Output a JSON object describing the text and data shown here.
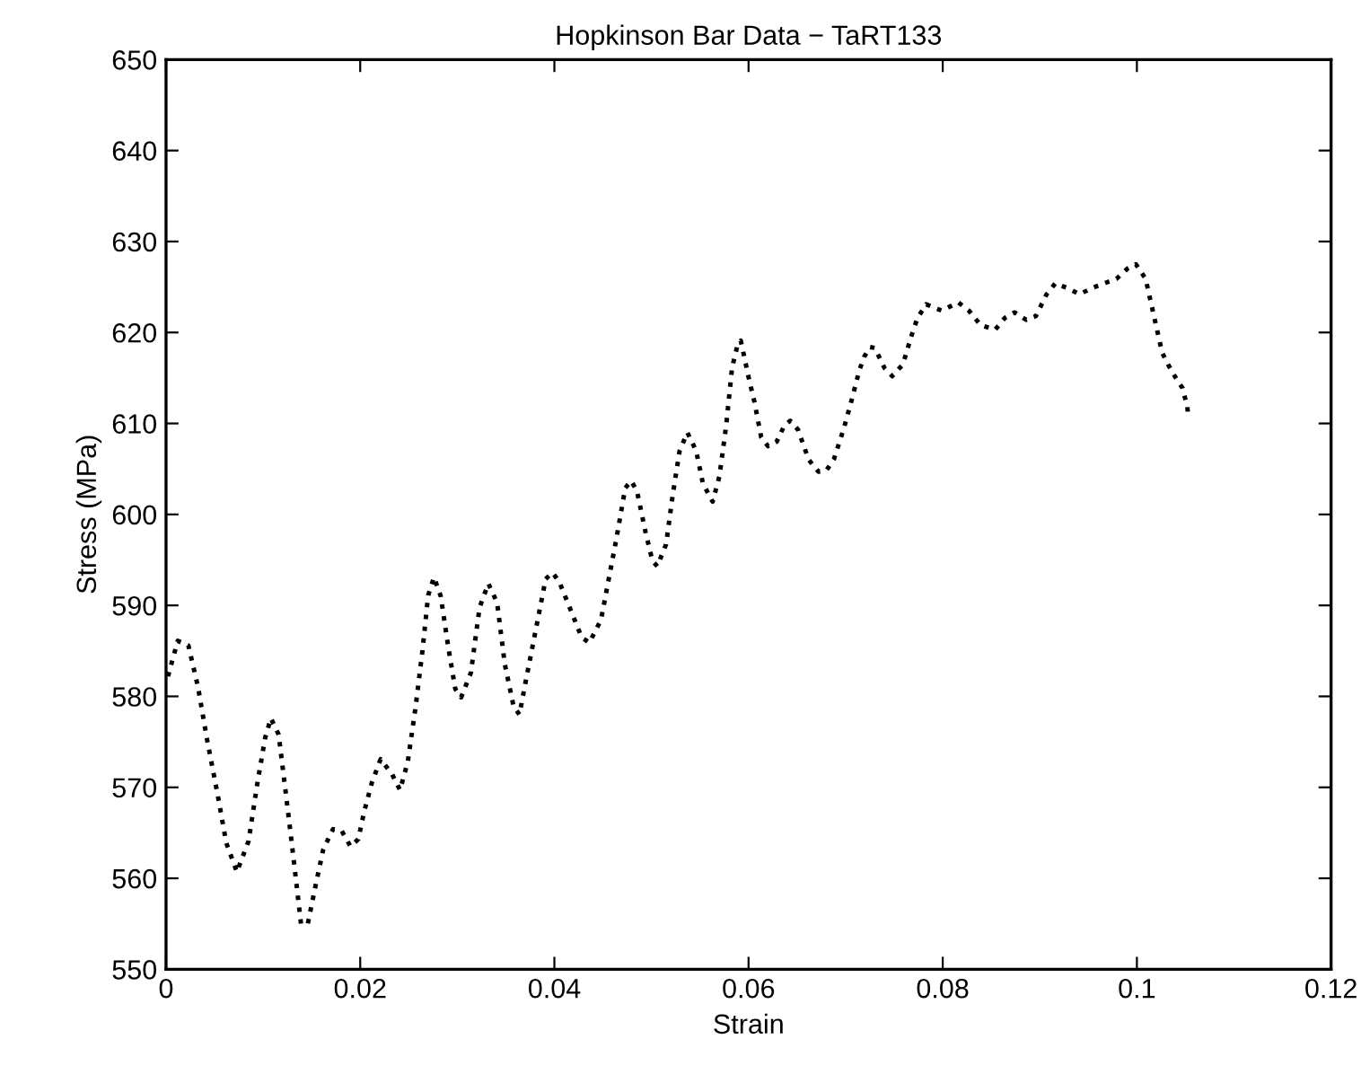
{
  "chart_data": {
    "type": "line",
    "title": "Hopkinson Bar Data − TaRT133",
    "xlabel": "Strain",
    "ylabel": "Stress (MPa)",
    "xlim": [
      0,
      0.12
    ],
    "xticks": [
      0,
      0.02,
      0.04,
      0.06,
      0.08,
      0.1,
      0.12
    ],
    "ylim": [
      550,
      650
    ],
    "yticks": [
      550,
      560,
      570,
      580,
      590,
      600,
      610,
      620,
      630,
      640,
      650
    ],
    "grid": false,
    "legend": false,
    "line_style": "dotted",
    "marker": "none",
    "series": [
      {
        "color": "#000000",
        "x": [
          0.0002,
          0.0012,
          0.0023,
          0.0033,
          0.0042,
          0.0053,
          0.0062,
          0.0073,
          0.0085,
          0.0094,
          0.0102,
          0.0108,
          0.0116,
          0.0124,
          0.0131,
          0.0139,
          0.0146,
          0.0155,
          0.0162,
          0.0172,
          0.0181,
          0.019,
          0.0198,
          0.0204,
          0.0212,
          0.0221,
          0.0233,
          0.0241,
          0.0249,
          0.0257,
          0.0264,
          0.027,
          0.0276,
          0.0283,
          0.0291,
          0.0298,
          0.0304,
          0.0314,
          0.0323,
          0.0332,
          0.0341,
          0.0349,
          0.0358,
          0.0364,
          0.0372,
          0.0383,
          0.0391,
          0.0398,
          0.0405,
          0.0416,
          0.0428,
          0.0436,
          0.0448,
          0.0456,
          0.0464,
          0.0473,
          0.0479,
          0.0485,
          0.0494,
          0.0501,
          0.0506,
          0.0515,
          0.0522,
          0.0529,
          0.0537,
          0.0546,
          0.0553,
          0.0563,
          0.057,
          0.0577,
          0.0583,
          0.0589,
          0.0592,
          0.06,
          0.0606,
          0.0613,
          0.062,
          0.0629,
          0.0637,
          0.0643,
          0.0651,
          0.0662,
          0.0672,
          0.068,
          0.0688,
          0.0698,
          0.0706,
          0.0714,
          0.0719,
          0.0725,
          0.073,
          0.074,
          0.0748,
          0.0759,
          0.0768,
          0.0774,
          0.0783,
          0.0799,
          0.0816,
          0.0827,
          0.0839,
          0.0854,
          0.0864,
          0.0874,
          0.0886,
          0.0896,
          0.0907,
          0.0916,
          0.0928,
          0.0941,
          0.0954,
          0.0969,
          0.0979,
          0.099,
          0.0999,
          0.1009,
          0.1018,
          0.1026,
          0.1032,
          0.1039,
          0.1047,
          0.1052,
          0.1053
        ],
        "values": [
          582.2,
          586.1,
          585.6,
          581.0,
          575.4,
          569.3,
          563.9,
          560.7,
          564.1,
          570.4,
          575.4,
          577.6,
          575.8,
          568.8,
          562.5,
          555.0,
          555.0,
          559.7,
          563.2,
          565.4,
          565.2,
          563.5,
          564.3,
          567.3,
          570.5,
          573.1,
          571.4,
          569.7,
          572.8,
          578.8,
          584.9,
          591.1,
          593.1,
          591.0,
          585.2,
          580.8,
          579.9,
          582.6,
          589.8,
          592.4,
          590.3,
          583.5,
          578.9,
          578.0,
          582.5,
          588.5,
          592.9,
          593.6,
          592.6,
          589.7,
          586.5,
          585.9,
          588.4,
          592.9,
          597.4,
          602.9,
          603.7,
          602.6,
          598.0,
          594.9,
          594.3,
          596.7,
          602.2,
          607.0,
          609.0,
          607.0,
          603.4,
          601.4,
          604.2,
          609.8,
          616.1,
          618.8,
          619.1,
          615.1,
          612.4,
          608.5,
          607.5,
          608.0,
          609.8,
          610.3,
          609.3,
          606.0,
          604.7,
          604.8,
          606.1,
          609.4,
          612.5,
          615.8,
          617.3,
          618.4,
          618.3,
          616.1,
          615.2,
          616.5,
          619.7,
          621.6,
          623.1,
          622.4,
          623.3,
          622.4,
          620.8,
          620.3,
          621.6,
          622.2,
          621.4,
          621.8,
          624.2,
          625.4,
          624.9,
          624.2,
          624.9,
          625.5,
          625.9,
          627.0,
          627.5,
          625.9,
          621.6,
          617.8,
          616.5,
          615.2,
          613.9,
          611.8,
          610.5
        ]
      }
    ]
  }
}
